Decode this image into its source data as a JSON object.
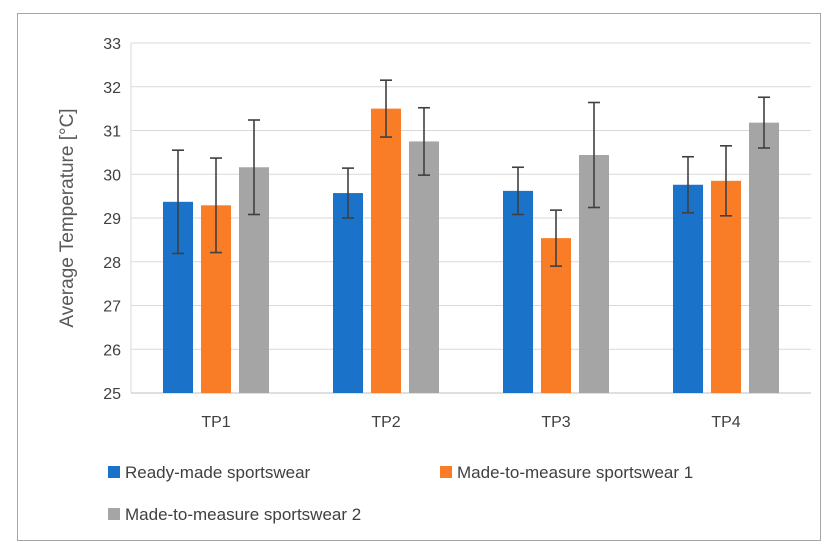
{
  "chart_data": {
    "type": "bar",
    "title": "",
    "xlabel": "",
    "ylabel": "Average Temperature [°C]",
    "ylim": [
      25,
      33
    ],
    "yticks": [
      25,
      26,
      27,
      28,
      29,
      30,
      31,
      32,
      33
    ],
    "grid": "horizontal",
    "legend_position": "bottom",
    "categories": [
      "TP1",
      "TP2",
      "TP3",
      "TP4"
    ],
    "series": [
      {
        "name": "Ready-made sportswear",
        "color": "#1a73c9",
        "values": [
          29.37,
          29.57,
          29.62,
          29.76
        ],
        "error": [
          1.18,
          0.57,
          0.54,
          0.64
        ]
      },
      {
        "name": "Made-to-measure sportswear 1",
        "color": "#f97d26",
        "values": [
          29.29,
          31.5,
          28.54,
          29.85
        ],
        "error": [
          1.08,
          0.65,
          0.64,
          0.8
        ]
      },
      {
        "name": "Made-to-measure sportswear 2",
        "color": "#a5a5a5",
        "values": [
          30.16,
          30.75,
          30.44,
          31.18
        ],
        "error": [
          1.08,
          0.77,
          1.2,
          0.58
        ]
      }
    ]
  }
}
